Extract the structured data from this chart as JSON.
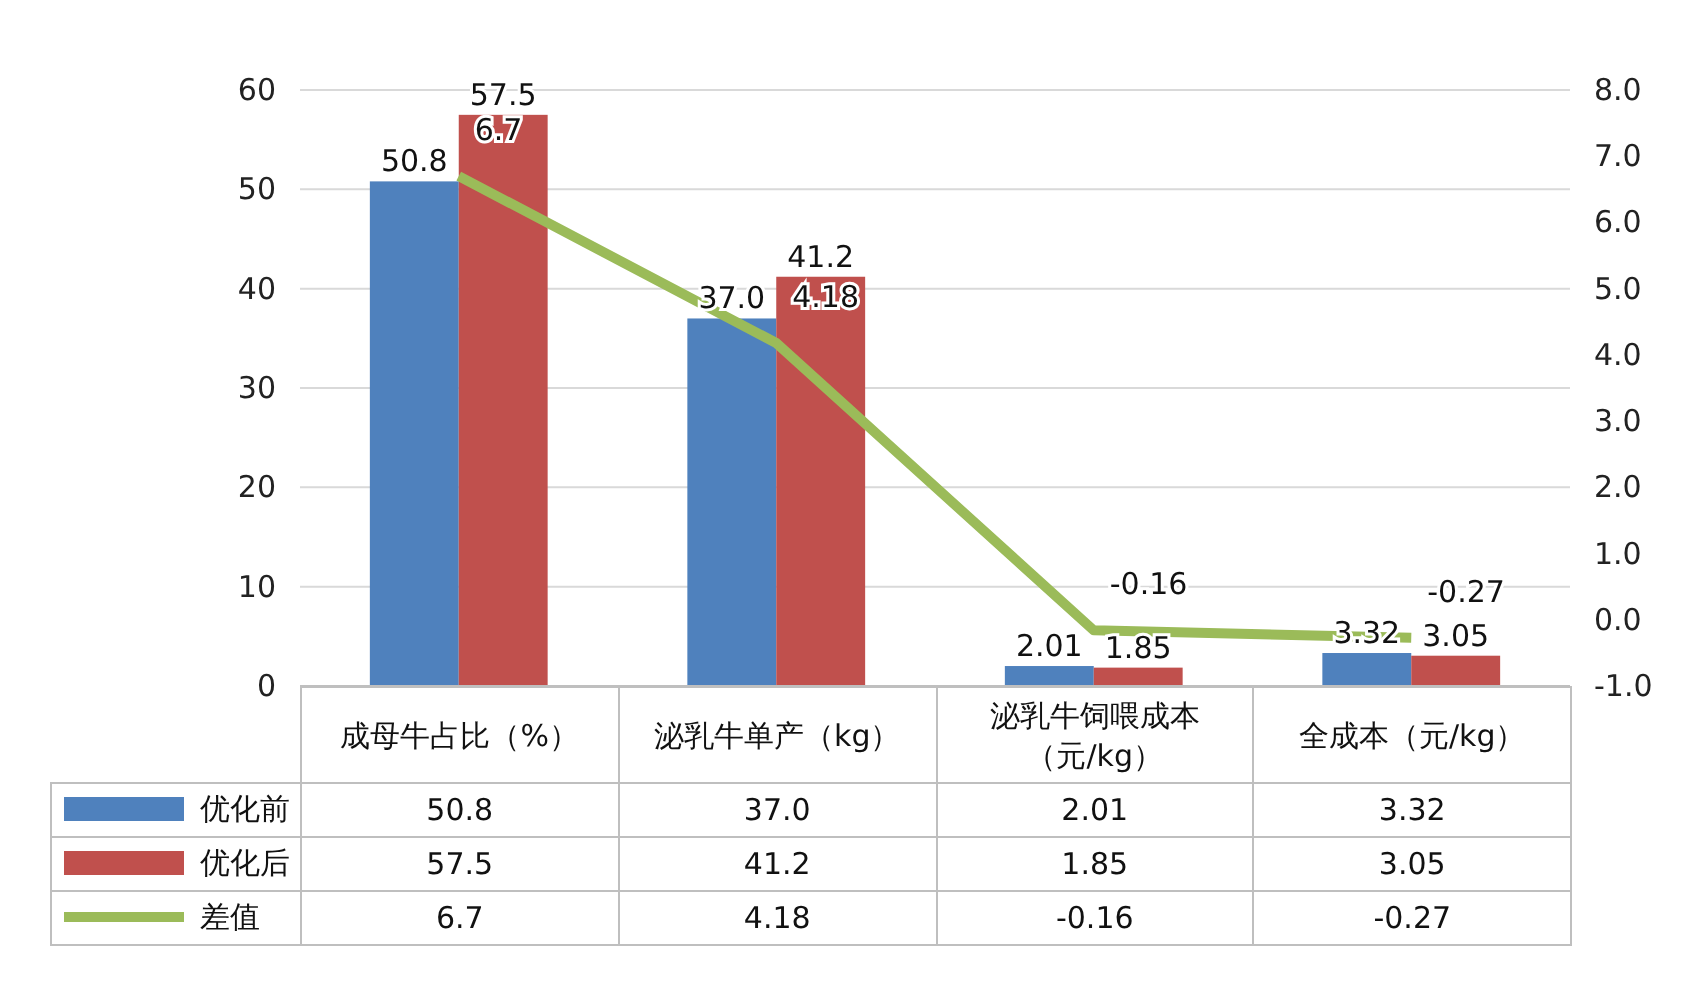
{
  "chart_data": {
    "type": "bar",
    "categories": [
      "成母牛占比（%）",
      "泌乳牛单产（kg）",
      "泌乳牛饲喂成本（元/kg）",
      "全成本（元/kg）"
    ],
    "series": [
      {
        "name": "优化前",
        "color": "#4f81bd",
        "values": [
          50.8,
          37.0,
          2.01,
          3.32
        ],
        "value_labels": [
          "50.8",
          "37.0",
          "2.01",
          "3.32"
        ]
      },
      {
        "name": "优化后",
        "color": "#c0504d",
        "values": [
          57.5,
          41.2,
          1.85,
          3.05
        ],
        "value_labels": [
          "57.5",
          "41.2",
          "1.85",
          "3.05"
        ]
      },
      {
        "name": "差值",
        "type": "line",
        "axis": "y2",
        "color": "#9bbb59",
        "values": [
          6.7,
          4.18,
          -0.16,
          -0.27
        ],
        "value_labels": [
          "6.7",
          "4.18",
          "-0.16",
          "-0.27"
        ]
      }
    ],
    "ylim": [
      0,
      60
    ],
    "yticks": [
      0,
      10,
      20,
      30,
      40,
      50,
      60
    ],
    "y2lim": [
      -1,
      8
    ],
    "y2ticks": [
      {
        "value": -1,
        "label": "-1.0"
      },
      {
        "value": 0,
        "label": "0.0"
      },
      {
        "value": 1,
        "label": "1.0"
      },
      {
        "value": 2,
        "label": "2.0"
      },
      {
        "value": 3,
        "label": "3.0"
      },
      {
        "value": 4,
        "label": "4.0"
      },
      {
        "value": 5,
        "label": "5.0"
      },
      {
        "value": 6,
        "label": "6.0"
      },
      {
        "value": 7,
        "label": "7.0"
      },
      {
        "value": 8,
        "label": "8.0"
      }
    ],
    "grid": "y",
    "legend": "bottom"
  }
}
